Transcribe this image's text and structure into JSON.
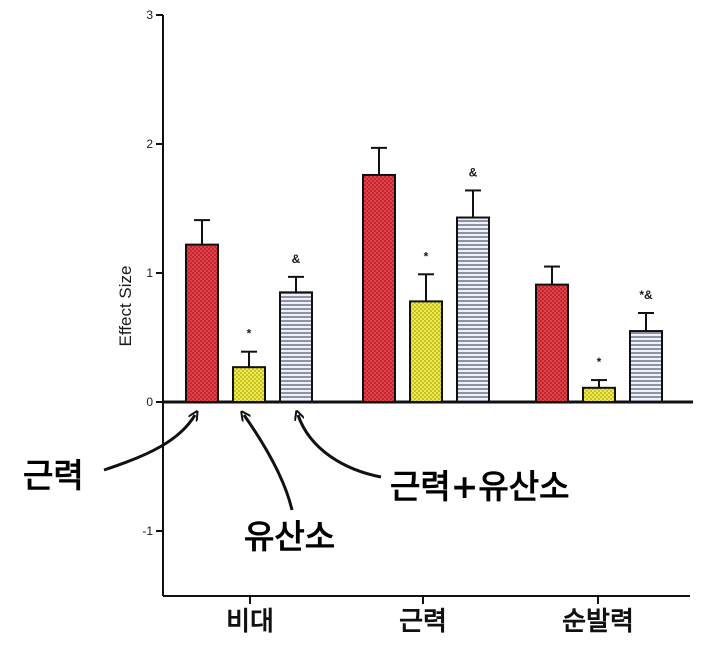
{
  "chart_data": {
    "type": "bar",
    "title": "",
    "xlabel": "",
    "ylabel": "Effect Size",
    "ylim": [
      -1.5,
      3
    ],
    "yticks": [
      "3",
      "2",
      "1",
      "0",
      "-1"
    ],
    "ytick_values": [
      3,
      2,
      1,
      0,
      -1
    ],
    "categories": [
      "비대",
      "근력",
      "순발력"
    ],
    "series": [
      {
        "name": "근력",
        "values": [
          1.22,
          1.76,
          0.91
        ],
        "errors": [
          0.19,
          0.21,
          0.14
        ],
        "annotations": [
          "",
          "",
          ""
        ],
        "color": "#d7363e",
        "pattern": "red-check"
      },
      {
        "name": "유산소",
        "values": [
          0.27,
          0.78,
          0.11
        ],
        "errors": [
          0.12,
          0.21,
          0.06
        ],
        "annotations": [
          "*",
          "*",
          "*"
        ],
        "color": "#e3de3a",
        "pattern": "yellow-check"
      },
      {
        "name": "근력+유산소",
        "values": [
          0.85,
          1.43,
          0.55
        ],
        "errors": [
          0.12,
          0.21,
          0.14
        ],
        "annotations": [
          "&",
          "&",
          "*&"
        ],
        "color": "#c9cbd6",
        "pattern": "gray-lines"
      }
    ],
    "legend": "arrows pointing to first category bars",
    "grid": false
  }
}
